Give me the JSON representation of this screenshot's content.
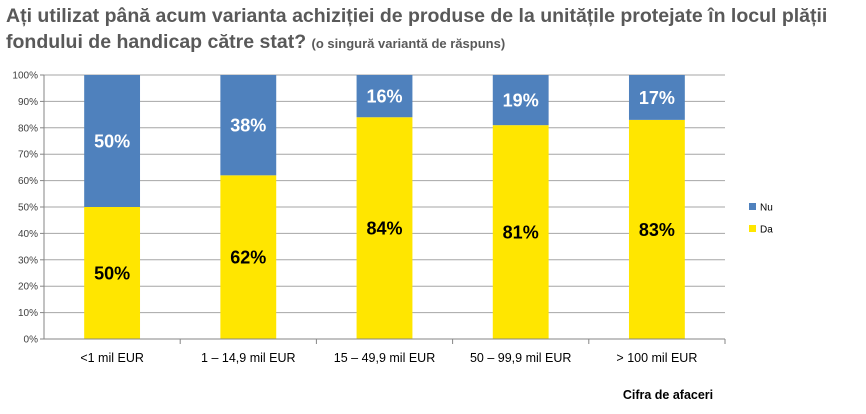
{
  "chart_data": {
    "type": "bar",
    "stacked": true,
    "percent_stacked": true,
    "title": "Ați utilizat până acum varianta achiziției de produse de la unitățile protejate în locul plății fondului de handicap către stat?",
    "subtitle": "(o singură variantă de răspuns)",
    "xlabel": "Cifra de afaceri",
    "ylabel": "",
    "ylim": [
      0,
      100
    ],
    "yticks": [
      "0%",
      "10%",
      "20%",
      "30%",
      "40%",
      "50%",
      "60%",
      "70%",
      "80%",
      "90%",
      "100%"
    ],
    "grid": true,
    "legend_position": "right",
    "categories": [
      "<1 mil EUR",
      "1 – 14,9 mil EUR",
      "15 – 49,9 mil EUR",
      "50 – 99,9 mil EUR",
      "> 100 mil EUR"
    ],
    "series": [
      {
        "name": "Da",
        "color": "#FFE600",
        "label_color": "#000000",
        "values": [
          50,
          62,
          84,
          81,
          83
        ],
        "labels": [
          "50%",
          "62%",
          "84%",
          "81%",
          "83%"
        ]
      },
      {
        "name": "Nu",
        "color": "#4F81BD",
        "label_color": "#FFFFFF",
        "values": [
          50,
          38,
          16,
          19,
          17
        ],
        "labels": [
          "50%",
          "38%",
          "16%",
          "19%",
          "17%"
        ]
      }
    ],
    "legend_order": [
      "Nu",
      "Da"
    ]
  }
}
